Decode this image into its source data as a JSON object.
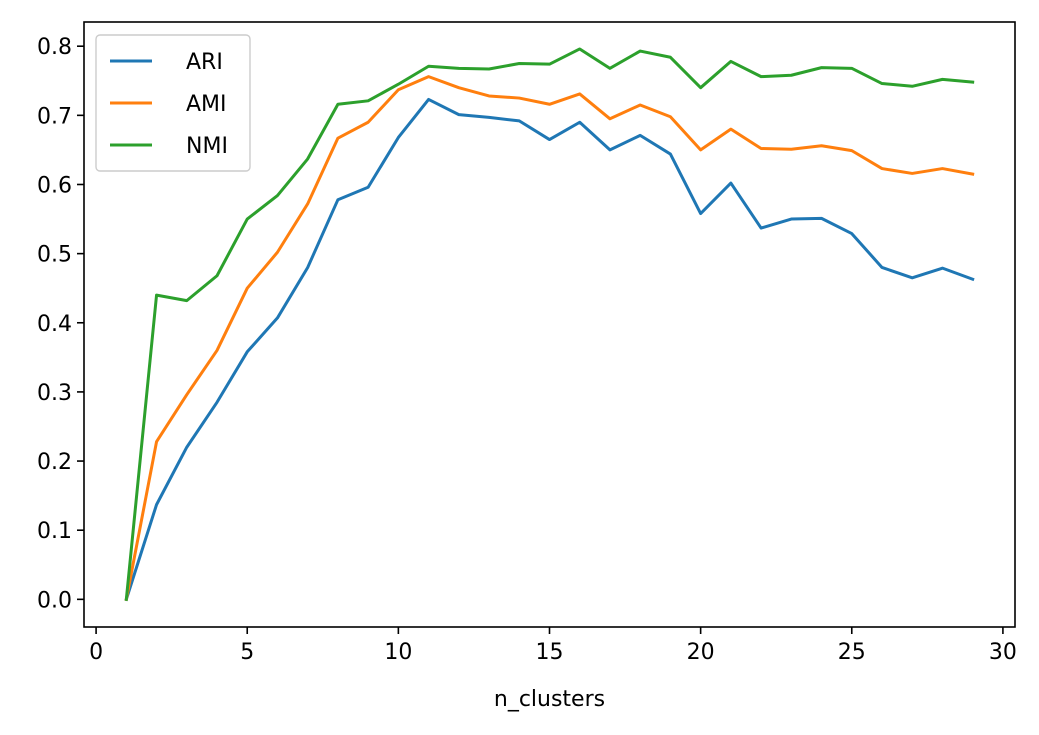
{
  "chart_data": {
    "type": "line",
    "title": "",
    "xlabel": "n_clusters",
    "ylabel": "",
    "xlim": [
      -0.4,
      30.4
    ],
    "ylim": [
      -0.04,
      0.835
    ],
    "x_ticks": [
      0,
      5,
      10,
      15,
      20,
      25,
      30
    ],
    "x_tick_labels": [
      "0",
      "5",
      "10",
      "15",
      "20",
      "25",
      "30"
    ],
    "y_ticks": [
      0.0,
      0.1,
      0.2,
      0.3,
      0.4,
      0.5,
      0.6,
      0.7,
      0.8
    ],
    "y_tick_labels": [
      "0.0",
      "0.1",
      "0.2",
      "0.3",
      "0.4",
      "0.5",
      "0.6",
      "0.7",
      "0.8"
    ],
    "grid": false,
    "legend_position": "top-left",
    "x": [
      1,
      2,
      3,
      4,
      5,
      6,
      7,
      8,
      9,
      10,
      11,
      12,
      13,
      14,
      15,
      16,
      17,
      18,
      19,
      20,
      21,
      22,
      23,
      24,
      25,
      26,
      27,
      28,
      29
    ],
    "series": [
      {
        "name": "ARI",
        "color": "#1f77b4",
        "values": [
          0.0,
          0.137,
          0.22,
          0.285,
          0.358,
          0.407,
          0.48,
          0.578,
          0.596,
          0.668,
          0.723,
          0.701,
          0.697,
          0.692,
          0.665,
          0.69,
          0.65,
          0.671,
          0.644,
          0.558,
          0.602,
          0.537,
          0.55,
          0.551,
          0.529,
          0.48,
          0.465,
          0.479,
          0.463
        ]
      },
      {
        "name": "AMI",
        "color": "#ff7f0e",
        "values": [
          0.0,
          0.228,
          0.296,
          0.36,
          0.45,
          0.502,
          0.572,
          0.667,
          0.69,
          0.737,
          0.756,
          0.74,
          0.728,
          0.725,
          0.716,
          0.731,
          0.695,
          0.715,
          0.698,
          0.65,
          0.68,
          0.652,
          0.651,
          0.656,
          0.649,
          0.623,
          0.616,
          0.623,
          0.615
        ]
      },
      {
        "name": "NMI",
        "color": "#2ca02c",
        "values": [
          0.0,
          0.44,
          0.432,
          0.468,
          0.55,
          0.584,
          0.637,
          0.716,
          0.721,
          0.745,
          0.771,
          0.768,
          0.767,
          0.775,
          0.774,
          0.796,
          0.768,
          0.793,
          0.784,
          0.74,
          0.778,
          0.756,
          0.758,
          0.769,
          0.768,
          0.746,
          0.742,
          0.752,
          0.748
        ]
      }
    ]
  }
}
